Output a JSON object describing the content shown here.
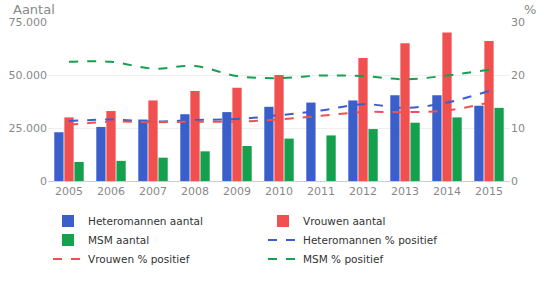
{
  "chart_data": {
    "type": "bar",
    "y_label": "Aantal",
    "y2_label": "%",
    "categories": [
      "2005",
      "2006",
      "2007",
      "2008",
      "2009",
      "2010",
      "2011",
      "2012",
      "2013",
      "2014",
      "2015"
    ],
    "series": [
      {
        "name": "Heteromannen aantal",
        "type": "bar",
        "color": "#3a5fcb",
        "values": [
          23000,
          25500,
          29000,
          31500,
          32500,
          35000,
          37000,
          38000,
          40500,
          40500,
          35500
        ]
      },
      {
        "name": "Vrouwen aantal",
        "type": "bar",
        "color": "#f0504f",
        "values": [
          30000,
          33000,
          38000,
          42500,
          44000,
          50000,
          null,
          58000,
          65000,
          70000,
          66000
        ]
      },
      {
        "name": "MSM aantal",
        "type": "bar",
        "color": "#15a04d",
        "values": [
          9000,
          9500,
          11000,
          14000,
          16500,
          20000,
          21500,
          24500,
          27500,
          30000,
          34500
        ]
      },
      {
        "name": "Heteromannen % positief",
        "type": "line",
        "line_style": "dashed",
        "axis": "y2",
        "color": "#3a5fcb",
        "values": [
          11.3,
          11.6,
          11.2,
          11.5,
          11.7,
          12.4,
          13.3,
          14.5,
          13.8,
          14.8,
          17.0
        ]
      },
      {
        "name": "Vrouwen % positief",
        "type": "line",
        "line_style": "dashed",
        "axis": "y2",
        "color": "#f0504f",
        "values": [
          10.6,
          11.2,
          11.1,
          11.2,
          11.2,
          11.6,
          12.3,
          13.0,
          13.0,
          13.3,
          14.8
        ]
      },
      {
        "name": "MSM % positief",
        "type": "line",
        "line_style": "dashed",
        "axis": "y2",
        "color": "#15a04d",
        "values": [
          22.5,
          22.5,
          21.2,
          21.7,
          19.8,
          19.4,
          19.9,
          19.8,
          19.2,
          19.9,
          21.0
        ]
      }
    ],
    "ylim": [
      0,
      75000
    ],
    "yticks": [
      0,
      {
        "value": 25000,
        "label": "25.000"
      },
      {
        "value": 50000,
        "label": "50.000"
      },
      {
        "value": 75000,
        "label": "75.000"
      }
    ],
    "y2lim": [
      0,
      30
    ],
    "y2ticks": [
      0,
      10,
      20,
      30
    ],
    "grid": true,
    "legend": "bottom"
  }
}
